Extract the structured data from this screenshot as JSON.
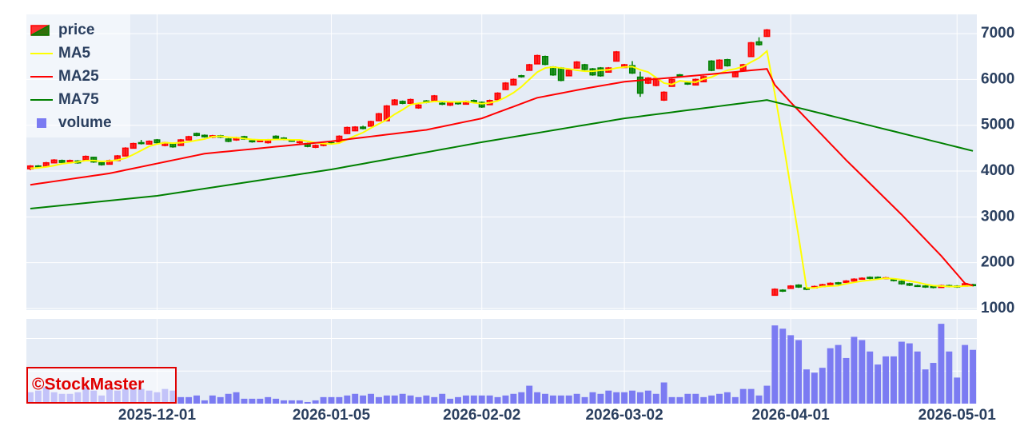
{
  "chart_data": {
    "type": "candlestick",
    "x": [
      "2025-11-06",
      "2025-11-07",
      "2025-11-10",
      "2025-11-11",
      "2025-11-12",
      "2025-11-13",
      "2025-11-14",
      "2025-11-17",
      "2025-11-18",
      "2025-11-19",
      "2025-11-20",
      "2025-11-21",
      "2025-11-25",
      "2025-11-26",
      "2025-11-27",
      "2025-11-28",
      "2025-12-01",
      "2025-12-02",
      "2025-12-03",
      "2025-12-04",
      "2025-12-05",
      "2025-12-08",
      "2025-12-09",
      "2025-12-10",
      "2025-12-11",
      "2025-12-12",
      "2025-12-15",
      "2025-12-16",
      "2025-12-17",
      "2025-12-18",
      "2025-12-19",
      "2025-12-22",
      "2025-12-23",
      "2025-12-24",
      "2025-12-25",
      "2025-12-26",
      "2025-12-29",
      "2025-12-30",
      "2026-01-05",
      "2026-01-06",
      "2026-01-07",
      "2026-01-08",
      "2026-01-09",
      "2026-01-13",
      "2026-01-14",
      "2026-01-15",
      "2026-01-16",
      "2026-01-19",
      "2026-01-20",
      "2026-01-21",
      "2026-01-22",
      "2026-01-23",
      "2026-01-26",
      "2026-01-27",
      "2026-01-28",
      "2026-01-29",
      "2026-01-30",
      "2026-02-02",
      "2026-02-03",
      "2026-02-04",
      "2026-02-05",
      "2026-02-06",
      "2026-02-09",
      "2026-02-10",
      "2026-02-12",
      "2026-02-13",
      "2026-02-16",
      "2026-02-17",
      "2026-02-18",
      "2026-02-19",
      "2026-02-20",
      "2026-02-24",
      "2026-02-25",
      "2026-02-26",
      "2026-02-27",
      "2026-03-02",
      "2026-03-03",
      "2026-03-04",
      "2026-03-05",
      "2026-03-06",
      "2026-03-09",
      "2026-03-10",
      "2026-03-11",
      "2026-03-12",
      "2026-03-13",
      "2026-03-16",
      "2026-03-17",
      "2026-03-18",
      "2026-03-19",
      "2026-03-23",
      "2026-03-24",
      "2026-03-25",
      "2026-03-26",
      "2026-03-27",
      "2026-03-30",
      "2026-03-31",
      "2026-04-01",
      "2026-04-02",
      "2026-04-03",
      "2026-04-06",
      "2026-04-07",
      "2026-04-08",
      "2026-04-09",
      "2026-04-10",
      "2026-04-13",
      "2026-04-14",
      "2026-04-15",
      "2026-04-16",
      "2026-04-17",
      "2026-04-20",
      "2026-04-21",
      "2026-04-22",
      "2026-04-23",
      "2026-04-24",
      "2026-04-27",
      "2026-04-28",
      "2026-04-30",
      "2026-05-01",
      "2026-05-07",
      "2026-05-08"
    ],
    "xticks": [
      "2025-12-01",
      "2026-01-05",
      "2026-02-02",
      "2026-03-02",
      "2026-04-01",
      "2026-05-01"
    ],
    "ylim": [
      965,
      7420
    ],
    "yticks": [
      1000,
      2000,
      3000,
      4000,
      5000,
      6000,
      7000
    ],
    "y2lim": [
      0,
      2.6
    ],
    "y2gridlines": [
      1,
      2
    ],
    "grid": true,
    "legend": "top-left",
    "watermark": "©StockMaster",
    "series": [
      {
        "name": "price",
        "type": "candlestick",
        "increasing_color": "#ff0000",
        "decreasing_color": "#008000",
        "open": [
          4050,
          4110,
          4100,
          4180,
          4230,
          4200,
          4220,
          4250,
          4300,
          4180,
          4150,
          4230,
          4330,
          4500,
          4620,
          4590,
          4680,
          4560,
          4600,
          4560,
          4680,
          4820,
          4780,
          4740,
          4770,
          4700,
          4680,
          4750,
          4660,
          4650,
          4620,
          4760,
          4720,
          4670,
          4620,
          4600,
          4520,
          4560,
          4620,
          4640,
          4820,
          4880,
          4960,
          4980,
          5100,
          5100,
          5450,
          5520,
          5480,
          5380,
          5530,
          5540,
          5480,
          5440,
          5490,
          5460,
          5540,
          5500,
          5450,
          5560,
          5780,
          5880,
          6080,
          6200,
          6340,
          6500,
          6270,
          6250,
          6080,
          6250,
          6320,
          6230,
          6250,
          6160,
          6400,
          6260,
          6300,
          6050,
          5920,
          5870,
          5550,
          5850,
          6100,
          5920,
          5880,
          5950,
          6400,
          6240,
          6430,
          6060,
          6200,
          6500,
          6820,
          6940,
          1290,
          1400,
          1440,
          1510,
          1450,
          1450,
          1480,
          1520,
          1560,
          1570,
          1600,
          1640,
          1680,
          1680,
          1650,
          1640,
          1590,
          1540,
          1500,
          1490,
          1480,
          1460,
          1500,
          1490,
          1490,
          1520
        ],
        "high": [
          4130,
          4130,
          4200,
          4260,
          4250,
          4250,
          4240,
          4340,
          4310,
          4200,
          4250,
          4350,
          4520,
          4620,
          4680,
          4670,
          4700,
          4640,
          4610,
          4700,
          4770,
          4840,
          4800,
          4790,
          4790,
          4720,
          4750,
          4770,
          4680,
          4680,
          4700,
          4780,
          4740,
          4690,
          4660,
          4620,
          4580,
          4620,
          4640,
          4780,
          4970,
          4980,
          4990,
          5100,
          5270,
          5440,
          5570,
          5540,
          5580,
          5460,
          5550,
          5660,
          5500,
          5510,
          5510,
          5540,
          5560,
          5520,
          5560,
          5720,
          5940,
          6020,
          6100,
          6340,
          6540,
          6520,
          6290,
          6270,
          6220,
          6400,
          6340,
          6250,
          6270,
          6270,
          6620,
          6340,
          6400,
          6170,
          6050,
          6040,
          5740,
          6020,
          6120,
          5940,
          6020,
          6080,
          6420,
          6440,
          6450,
          6170,
          6340,
          6820,
          6920,
          7100,
          1440,
          1420,
          1510,
          1530,
          1470,
          1500,
          1540,
          1570,
          1580,
          1620,
          1660,
          1680,
          1700,
          1700,
          1690,
          1660,
          1610,
          1560,
          1520,
          1510,
          1500,
          1520,
          1520,
          1510,
          1560,
          1540
        ],
        "low": [
          4020,
          4060,
          4090,
          4170,
          4170,
          4190,
          4160,
          4240,
          4180,
          4120,
          4140,
          4220,
          4320,
          4490,
          4580,
          4580,
          4600,
          4540,
          4510,
          4550,
          4670,
          4760,
          4730,
          4720,
          4720,
          4630,
          4660,
          4680,
          4620,
          4630,
          4600,
          4700,
          4670,
          4640,
          4600,
          4520,
          4500,
          4540,
          4580,
          4630,
          4810,
          4870,
          4910,
          4970,
          5090,
          5090,
          5440,
          5460,
          5470,
          5360,
          5480,
          5530,
          5440,
          5420,
          5450,
          5450,
          5480,
          5380,
          5440,
          5550,
          5770,
          5870,
          6040,
          6190,
          6330,
          6310,
          6080,
          5960,
          6070,
          6240,
          6200,
          6080,
          6060,
          6150,
          6390,
          6250,
          6120,
          5620,
          5900,
          5850,
          5530,
          5840,
          6060,
          5880,
          5870,
          5940,
          6180,
          6230,
          6280,
          6050,
          6190,
          6490,
          6740,
          6930,
          1280,
          1360,
          1430,
          1450,
          1400,
          1440,
          1470,
          1510,
          1520,
          1560,
          1590,
          1630,
          1640,
          1630,
          1640,
          1590,
          1520,
          1490,
          1470,
          1450,
          1440,
          1450,
          1460,
          1450,
          1480,
          1480
        ],
        "close": [
          4110,
          4080,
          4180,
          4240,
          4190,
          4230,
          4180,
          4320,
          4200,
          4140,
          4230,
          4330,
          4500,
          4600,
          4600,
          4650,
          4620,
          4620,
          4530,
          4680,
          4750,
          4780,
          4750,
          4770,
          4740,
          4650,
          4730,
          4700,
          4640,
          4660,
          4680,
          4720,
          4690,
          4660,
          4640,
          4540,
          4560,
          4600,
          4600,
          4760,
          4950,
          4960,
          4930,
          5080,
          5250,
          5420,
          5550,
          5480,
          5560,
          5440,
          5500,
          5640,
          5460,
          5490,
          5470,
          5520,
          5500,
          5400,
          5540,
          5700,
          5920,
          6000,
          6060,
          6320,
          6520,
          6330,
          6100,
          5980,
          6200,
          6380,
          6220,
          6100,
          6080,
          6250,
          6600,
          6320,
          6140,
          5700,
          6030,
          6020,
          5720,
          6000,
          6080,
          5900,
          6000,
          6060,
          6200,
          6420,
          6300,
          6150,
          6320,
          6800,
          6760,
          7080,
          1420,
          1380,
          1490,
          1470,
          1420,
          1480,
          1520,
          1550,
          1540,
          1600,
          1640,
          1660,
          1660,
          1650,
          1670,
          1610,
          1540,
          1510,
          1490,
          1470,
          1460,
          1500,
          1480,
          1470,
          1540,
          1500
        ]
      },
      {
        "name": "MA5",
        "type": "line",
        "color": "#ffff00",
        "values": [
          4060,
          4070,
          4090,
          4120,
          4160,
          4180,
          4200,
          4230,
          4230,
          4210,
          4220,
          4240,
          4280,
          4360,
          4450,
          4540,
          4590,
          4620,
          4610,
          4620,
          4640,
          4670,
          4700,
          4750,
          4760,
          4740,
          4730,
          4710,
          4690,
          4680,
          4680,
          4690,
          4690,
          4680,
          4680,
          4650,
          4620,
          4600,
          4590,
          4610,
          4690,
          4770,
          4840,
          4940,
          5030,
          5120,
          5240,
          5340,
          5450,
          5480,
          5500,
          5520,
          5520,
          5510,
          5510,
          5520,
          5490,
          5470,
          5490,
          5530,
          5610,
          5710,
          5840,
          6000,
          6160,
          6250,
          6270,
          6250,
          6230,
          6200,
          6180,
          6180,
          6200,
          6210,
          6250,
          6270,
          6280,
          6210,
          6160,
          6040,
          5920,
          5890,
          5970,
          5950,
          5940,
          6010,
          6050,
          6130,
          6200,
          6230,
          6280,
          6380,
          6470,
          6620,
          5680,
          4690,
          3630,
          2570,
          1450,
          1450,
          1480,
          1490,
          1500,
          1540,
          1570,
          1600,
          1620,
          1640,
          1660,
          1650,
          1630,
          1600,
          1570,
          1530,
          1500,
          1490,
          1480,
          1480,
          1490,
          1500
        ]
      },
      {
        "name": "MA25",
        "type": "line",
        "color": "#ff0000",
        "values": [
          3700,
          3725,
          3750,
          3775,
          3800,
          3825,
          3850,
          3875,
          3900,
          3925,
          3950,
          3986,
          4022,
          4058,
          4093,
          4129,
          4165,
          4201,
          4237,
          4272,
          4308,
          4344,
          4380,
          4397,
          4414,
          4431,
          4448,
          4464,
          4481,
          4498,
          4515,
          4532,
          4549,
          4566,
          4582,
          4599,
          4616,
          4633,
          4650,
          4671,
          4692,
          4713,
          4733,
          4754,
          4775,
          4796,
          4817,
          4838,
          4858,
          4879,
          4900,
          4936,
          4971,
          5007,
          5043,
          5079,
          5114,
          5150,
          5214,
          5279,
          5343,
          5407,
          5471,
          5536,
          5600,
          5633,
          5667,
          5700,
          5733,
          5767,
          5800,
          5830,
          5860,
          5890,
          5920,
          5950,
          5965,
          5980,
          5995,
          6010,
          6025,
          6040,
          6055,
          6070,
          6085,
          6100,
          6116,
          6133,
          6149,
          6165,
          6181,
          6198,
          6214,
          6230,
          5880,
          5690,
          5500,
          5320,
          5140,
          4960,
          4780,
          4600,
          4420,
          4240,
          4070,
          3900,
          3730,
          3560,
          3390,
          3220,
          3050,
          2870,
          2690,
          2510,
          2330,
          2150,
          1950,
          1750,
          1550,
          1500
        ]
      },
      {
        "name": "MA75",
        "type": "line",
        "color": "#008000",
        "values": [
          3180,
          3198,
          3215,
          3233,
          3250,
          3268,
          3285,
          3303,
          3320,
          3338,
          3355,
          3373,
          3390,
          3408,
          3425,
          3443,
          3460,
          3486,
          3512,
          3538,
          3565,
          3591,
          3617,
          3643,
          3669,
          3695,
          3721,
          3748,
          3774,
          3800,
          3826,
          3852,
          3878,
          3904,
          3931,
          3957,
          3983,
          4009,
          4035,
          4066,
          4098,
          4129,
          4160,
          4192,
          4223,
          4254,
          4286,
          4317,
          4348,
          4380,
          4411,
          4442,
          4474,
          4505,
          4536,
          4567,
          4599,
          4630,
          4659,
          4688,
          4717,
          4746,
          4774,
          4803,
          4832,
          4861,
          4890,
          4919,
          4948,
          4977,
          5006,
          5034,
          5063,
          5092,
          5121,
          5150,
          5172,
          5194,
          5217,
          5239,
          5261,
          5283,
          5306,
          5328,
          5350,
          5372,
          5394,
          5417,
          5439,
          5461,
          5483,
          5506,
          5528,
          5550,
          5507,
          5465,
          5422,
          5380,
          5337,
          5294,
          5252,
          5209,
          5166,
          5124,
          5081,
          5038,
          4996,
          4953,
          4910,
          4868,
          4825,
          4782,
          4740,
          4697,
          4654,
          4612,
          4569,
          4526,
          4483,
          4440
        ]
      },
      {
        "name": "volume",
        "type": "bar",
        "axis": "y2",
        "color": "#7b7bf2",
        "values": [
          0.35,
          0.4,
          0.5,
          0.35,
          0.3,
          0.3,
          0.35,
          0.5,
          0.4,
          0.25,
          0.45,
          0.4,
          0.45,
          0.45,
          0.45,
          0.4,
          0.35,
          0.45,
          0.4,
          0.2,
          0.2,
          0.25,
          0.1,
          0.25,
          0.2,
          0.3,
          0.35,
          0.15,
          0.15,
          0.15,
          0.2,
          0.15,
          0.1,
          0.1,
          0.1,
          0.05,
          0.1,
          0.2,
          0.2,
          0.2,
          0.25,
          0.3,
          0.25,
          0.3,
          0.2,
          0.25,
          0.25,
          0.3,
          0.25,
          0.2,
          0.25,
          0.2,
          0.3,
          0.15,
          0.2,
          0.25,
          0.25,
          0.25,
          0.25,
          0.2,
          0.25,
          0.3,
          0.35,
          0.55,
          0.35,
          0.3,
          0.25,
          0.25,
          0.25,
          0.3,
          0.2,
          0.35,
          0.3,
          0.4,
          0.35,
          0.35,
          0.4,
          0.35,
          0.4,
          0.3,
          0.65,
          0.2,
          0.2,
          0.3,
          0.3,
          0.2,
          0.25,
          0.3,
          0.35,
          0.2,
          0.45,
          0.45,
          0.25,
          0.55,
          2.4,
          2.3,
          2.1,
          1.95,
          1.05,
          0.95,
          1.1,
          1.7,
          1.8,
          1.4,
          2.05,
          1.95,
          1.6,
          1.2,
          1.45,
          1.45,
          1.9,
          1.85,
          1.6,
          1.05,
          1.25,
          2.45,
          1.6,
          0.8,
          1.8,
          1.65
        ]
      }
    ]
  }
}
